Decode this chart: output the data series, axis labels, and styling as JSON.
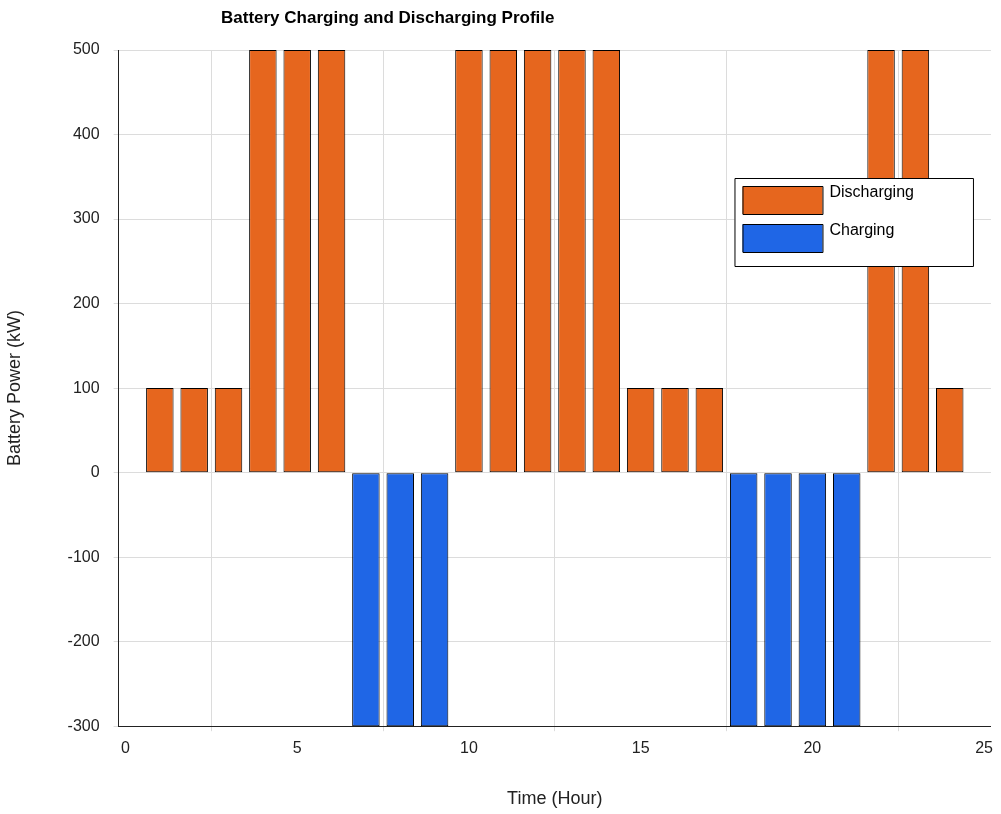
{
  "chart_data": {
    "type": "bar",
    "title": "Battery Charging and Discharging Profile",
    "xlabel": "Time (Hour)",
    "ylabel": "Battery Power (kW)",
    "x": [
      1,
      2,
      3,
      4,
      5,
      6,
      7,
      8,
      9,
      10,
      11,
      12,
      13,
      14,
      15,
      16,
      17,
      18,
      19,
      20,
      21,
      22,
      23,
      24
    ],
    "series": [
      {
        "name": "Discharging",
        "color": "#e6661e",
        "values": [
          100,
          100,
          100,
          500,
          500,
          500,
          null,
          null,
          null,
          500,
          500,
          500,
          500,
          500,
          100,
          100,
          100,
          null,
          null,
          null,
          null,
          500,
          500,
          100
        ]
      },
      {
        "name": "Charging",
        "color": "#1f66e6",
        "values": [
          null,
          null,
          null,
          null,
          null,
          null,
          -300,
          -300,
          -300,
          null,
          null,
          null,
          null,
          null,
          null,
          null,
          null,
          -300,
          -300,
          -300,
          -300,
          null,
          null,
          null
        ]
      }
    ],
    "xlim": [
      -0.2,
      25.2
    ],
    "xticks": [
      0,
      5,
      10,
      15,
      20,
      25
    ],
    "ylim": [
      -300,
      500
    ],
    "yticks": [
      -300,
      -200,
      -100,
      0,
      100,
      200,
      300,
      400,
      500
    ],
    "grid": true,
    "legend": "top right"
  }
}
